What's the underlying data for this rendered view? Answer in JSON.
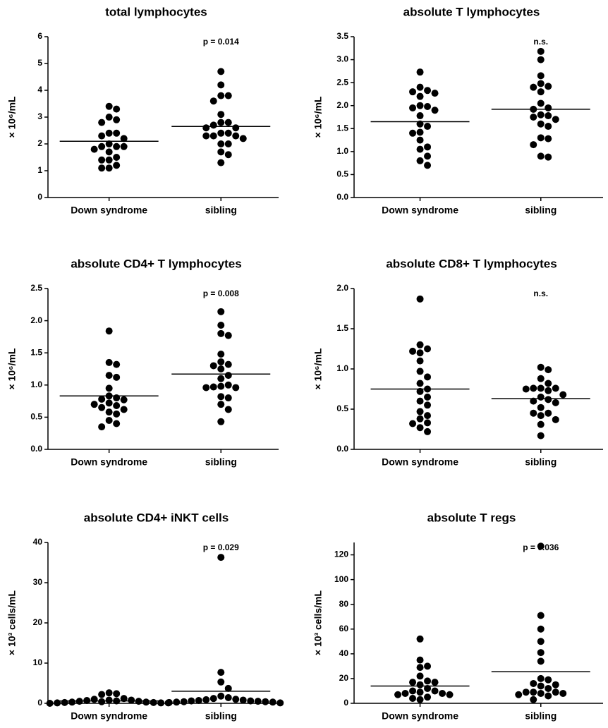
{
  "chart_data": [
    {
      "type": "scatter",
      "title": "total lymphocytes",
      "ylabel": "× 10⁶/mL",
      "annotation": "p = 0.014",
      "color": "#000000",
      "categories": [
        "Down syndrome",
        "sibling"
      ],
      "values": [
        [
          3.4,
          3.3,
          3.0,
          2.9,
          2.8,
          2.4,
          2.4,
          2.3,
          2.2,
          2.0,
          1.9,
          1.9,
          1.9,
          1.8,
          1.7,
          1.5,
          1.4,
          1.4,
          1.2,
          1.1,
          1.1
        ],
        [
          4.7,
          4.2,
          3.8,
          3.8,
          3.6,
          3.1,
          2.8,
          2.8,
          2.7,
          2.6,
          2.6,
          2.4,
          2.4,
          2.3,
          2.3,
          2.3,
          2.2,
          2.0,
          2.0,
          1.7,
          1.6,
          1.3
        ]
      ],
      "centers": [
        2.1,
        2.65
      ],
      "ylim": [
        0,
        6
      ],
      "yticks": [
        0,
        1,
        2,
        3,
        4,
        5,
        6
      ]
    },
    {
      "type": "scatter",
      "title": "absolute T lymphocytes",
      "ylabel": "× 10⁶/mL",
      "annotation": "n.s.",
      "color": "#000000",
      "categories": [
        "Down syndrome",
        "sibling"
      ],
      "values": [
        [
          2.73,
          2.4,
          2.33,
          2.3,
          2.27,
          2.2,
          2.0,
          1.98,
          1.95,
          1.9,
          1.78,
          1.6,
          1.55,
          1.42,
          1.4,
          1.25,
          1.1,
          1.05,
          0.9,
          0.8,
          0.7
        ],
        [
          3.18,
          3.0,
          2.65,
          2.48,
          2.42,
          2.4,
          2.3,
          2.05,
          1.95,
          1.92,
          1.8,
          1.78,
          1.75,
          1.7,
          1.6,
          1.55,
          1.3,
          1.28,
          1.15,
          0.9,
          0.88
        ]
      ],
      "centers": [
        1.65,
        1.92
      ],
      "ylim": [
        0,
        3.5
      ],
      "yticks": [
        {
          "value": 0,
          "label": "0.0"
        },
        0.5,
        {
          "value": 1,
          "label": "1.0"
        },
        1.5,
        {
          "value": 2,
          "label": "2.0"
        },
        2.5,
        {
          "value": 3,
          "label": "3.0"
        },
        3.5
      ]
    },
    {
      "type": "scatter",
      "title": "absolute CD4+ T lymphocytes",
      "ylabel": "× 10⁶/mL",
      "annotation": "p = 0.008",
      "color": "#000000",
      "categories": [
        "Down syndrome",
        "sibling"
      ],
      "values": [
        [
          1.84,
          1.35,
          1.32,
          1.15,
          1.12,
          0.95,
          0.83,
          0.8,
          0.78,
          0.77,
          0.72,
          0.7,
          0.68,
          0.65,
          0.62,
          0.58,
          0.55,
          0.45,
          0.4,
          0.35
        ],
        [
          2.14,
          1.93,
          1.8,
          1.77,
          1.48,
          1.36,
          1.32,
          1.3,
          1.25,
          1.15,
          1.1,
          1.0,
          0.98,
          0.97,
          0.96,
          0.96,
          0.82,
          0.8,
          0.7,
          0.62,
          0.43
        ]
      ],
      "centers": [
        0.83,
        1.17
      ],
      "ylim": [
        0,
        2.5
      ],
      "yticks": [
        {
          "value": 0,
          "label": "0.0"
        },
        0.5,
        {
          "value": 1,
          "label": "1.0"
        },
        1.5,
        {
          "value": 2,
          "label": "2.0"
        },
        2.5
      ]
    },
    {
      "type": "scatter",
      "title": "absolute CD8+ T lymphocytes",
      "ylabel": "× 10⁶/mL",
      "annotation": "n.s.",
      "color": "#000000",
      "categories": [
        "Down syndrome",
        "sibling"
      ],
      "values": [
        [
          1.87,
          1.3,
          1.25,
          1.22,
          1.2,
          1.1,
          0.97,
          0.9,
          0.82,
          0.75,
          0.72,
          0.65,
          0.6,
          0.55,
          0.47,
          0.42,
          0.38,
          0.33,
          0.32,
          0.27,
          0.22
        ],
        [
          1.02,
          0.99,
          0.88,
          0.82,
          0.76,
          0.76,
          0.76,
          0.75,
          0.73,
          0.68,
          0.65,
          0.62,
          0.6,
          0.58,
          0.52,
          0.45,
          0.45,
          0.42,
          0.37,
          0.31,
          0.17
        ]
      ],
      "centers": [
        0.75,
        0.63
      ],
      "ylim": [
        0,
        2
      ],
      "yticks": [
        {
          "value": 0,
          "label": "0.0"
        },
        0.5,
        {
          "value": 1,
          "label": "1.0"
        },
        1.5,
        {
          "value": 2,
          "label": "2.0"
        }
      ]
    },
    {
      "type": "scatter",
      "title": "absolute CD4+ iNKT cells",
      "ylabel": "× 10³ cells/mL",
      "annotation": "p = 0.029",
      "color": "#000000",
      "categories": [
        "Down syndrome",
        "sibling"
      ],
      "values": [
        [
          2.6,
          2.4,
          2.2,
          1.2,
          1.0,
          0.8,
          0.8,
          0.7,
          0.6,
          0.5,
          0.5,
          0.4,
          0.3,
          0.3,
          0.2,
          0.2,
          0.1,
          0.1,
          0.1,
          0.0
        ],
        [
          36.3,
          7.7,
          5.3,
          3.7,
          1.8,
          1.4,
          1.2,
          1.0,
          0.9,
          0.8,
          0.7,
          0.6,
          0.6,
          0.5,
          0.4,
          0.4,
          0.3,
          0.3,
          0.2,
          0.1
        ]
      ],
      "centers": [
        0.6,
        3.0
      ],
      "ylim": [
        0,
        40
      ],
      "yticks": [
        0,
        10,
        20,
        30,
        40
      ]
    },
    {
      "type": "scatter",
      "title": "absolute T regs",
      "ylabel": "× 10³ cells/mL",
      "annotation": "p = 0.036",
      "color": "#000000",
      "categories": [
        "Down syndrome",
        "sibling"
      ],
      "values": [
        [
          52,
          35,
          30,
          29,
          22,
          18,
          17,
          17,
          15,
          12,
          10,
          10,
          9,
          8,
          8,
          7,
          7,
          5,
          4,
          3
        ],
        [
          127,
          71,
          60,
          50,
          41,
          34,
          20,
          19,
          16,
          15,
          14,
          12,
          9,
          9,
          9,
          8,
          8,
          7,
          6,
          3
        ]
      ],
      "centers": [
        14,
        25.5
      ],
      "ylim": [
        0,
        130
      ],
      "yticks": [
        0,
        20,
        40,
        60,
        80,
        100,
        120
      ]
    }
  ]
}
